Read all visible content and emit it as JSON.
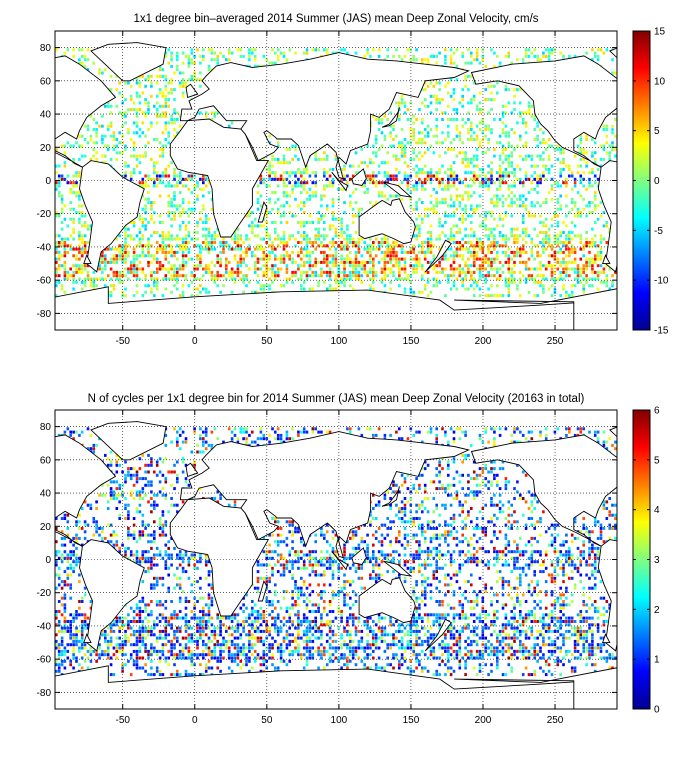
{
  "chart_data": [
    {
      "type": "heatmap",
      "title": "1x1 degree bin–averaged 2014 Summer (JAS) mean Deep Zonal Velocity, cm/s",
      "xlim": [
        -97,
        293
      ],
      "ylim": [
        -90,
        90
      ],
      "xticks": [
        -50,
        0,
        50,
        100,
        150,
        200,
        250
      ],
      "yticks": [
        80,
        60,
        40,
        20,
        0,
        -20,
        -40,
        -60,
        -80
      ],
      "grid": true,
      "colorbar": {
        "min": -15,
        "max": 15,
        "ticks": [
          15,
          10,
          5,
          0,
          -5,
          -10,
          -15
        ],
        "colormap": "jet"
      },
      "basemap": "world coastlines"
    },
    {
      "type": "heatmap",
      "title": "N of cycles per 1x1 degree bin for 2014 Summer (JAS) mean Deep Zonal Velocity (20163 in total)",
      "xlim": [
        -97,
        293
      ],
      "ylim": [
        -90,
        90
      ],
      "xticks": [
        -50,
        0,
        50,
        100,
        150,
        200,
        250
      ],
      "yticks": [
        80,
        60,
        40,
        20,
        0,
        -20,
        -40,
        -60,
        -80
      ],
      "grid": true,
      "colorbar": {
        "min": 0,
        "max": 6,
        "ticks": [
          6,
          5,
          4,
          3,
          2,
          1,
          0
        ],
        "colormap": "jet"
      },
      "basemap": "world coastlines"
    }
  ]
}
